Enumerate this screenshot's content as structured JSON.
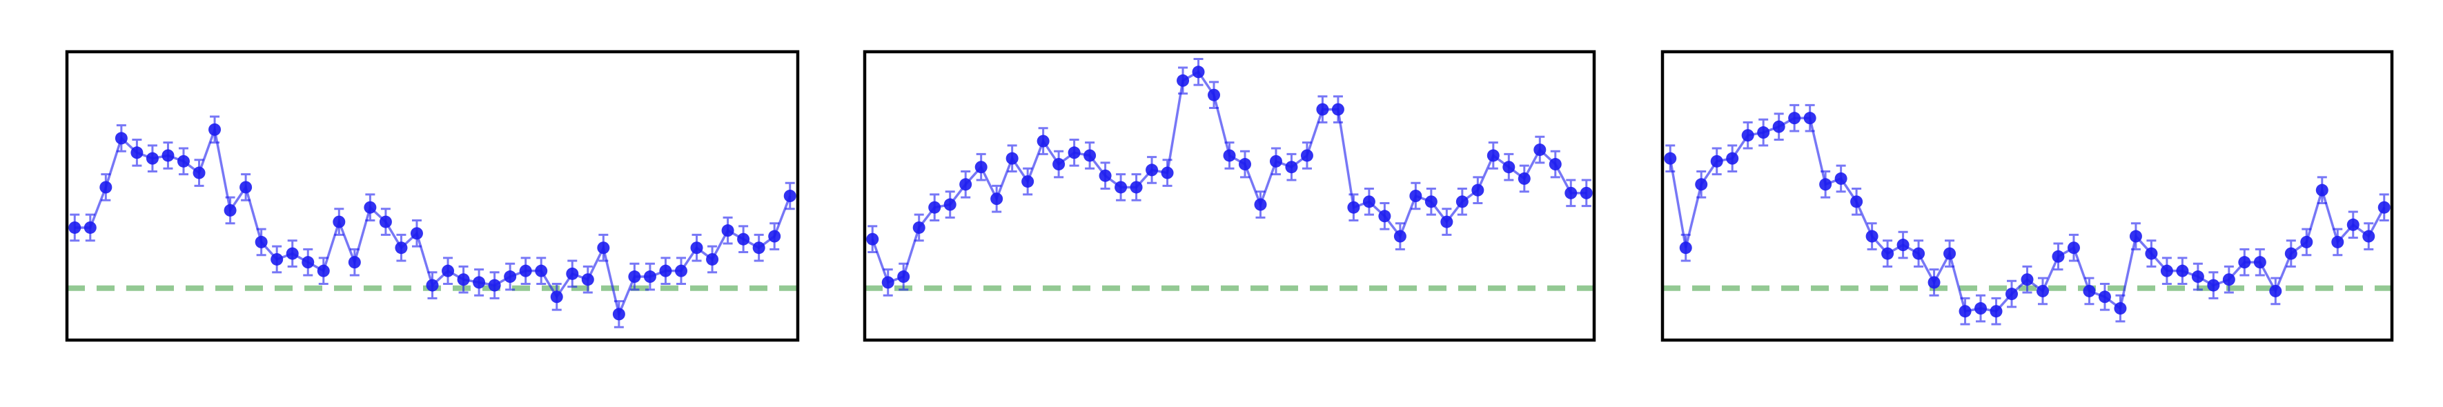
{
  "chart_data": [
    {
      "type": "line",
      "xlim": [
        -0.5,
        46.5
      ],
      "ylim": [
        0,
        10
      ],
      "series": [
        {
          "color": "#1c1cf0",
          "error": 0.45,
          "values": [
            3.9,
            3.9,
            5.3,
            7.0,
            6.5,
            6.3,
            6.4,
            6.2,
            5.8,
            7.3,
            4.5,
            5.3,
            3.4,
            2.8,
            3.0,
            2.7,
            2.4,
            4.1,
            2.7,
            4.6,
            4.1,
            3.2,
            3.7,
            1.9,
            2.4,
            2.1,
            2.0,
            1.9,
            2.2,
            2.4,
            2.4,
            1.5,
            2.3,
            2.1,
            3.2,
            0.9,
            2.2,
            2.2,
            2.4,
            2.4,
            3.2,
            2.8,
            3.8,
            3.5,
            3.2,
            3.6,
            5.0
          ]
        }
      ],
      "hline": {
        "value": 1.8,
        "color": "#93c993"
      }
    },
    {
      "type": "line",
      "xlim": [
        -0.5,
        46.5
      ],
      "ylim": [
        0,
        10
      ],
      "series": [
        {
          "color": "#1c1cf0",
          "error": 0.45,
          "values": [
            3.5,
            2.0,
            2.2,
            3.9,
            4.6,
            4.7,
            5.4,
            6.0,
            4.9,
            6.3,
            5.5,
            6.9,
            6.1,
            6.5,
            6.4,
            5.7,
            5.3,
            5.3,
            5.9,
            5.8,
            9.0,
            9.3,
            8.5,
            6.4,
            6.1,
            4.7,
            6.2,
            6.0,
            6.4,
            8.0,
            8.0,
            4.6,
            4.8,
            4.3,
            3.6,
            5.0,
            4.8,
            4.1,
            4.8,
            5.2,
            6.4,
            6.0,
            5.6,
            6.6,
            6.1,
            5.1,
            5.1
          ]
        }
      ],
      "hline": {
        "value": 1.8,
        "color": "#93c993"
      }
    },
    {
      "type": "line",
      "xlim": [
        -0.5,
        46.5
      ],
      "ylim": [
        0,
        10
      ],
      "series": [
        {
          "color": "#1c1cf0",
          "error": 0.45,
          "values": [
            6.3,
            3.2,
            5.4,
            6.2,
            6.3,
            7.1,
            7.2,
            7.4,
            7.7,
            7.7,
            5.4,
            5.6,
            4.8,
            3.6,
            3.0,
            3.3,
            3.0,
            2.0,
            3.0,
            1.0,
            1.1,
            1.0,
            1.6,
            2.1,
            1.7,
            2.9,
            3.2,
            1.7,
            1.5,
            1.1,
            3.6,
            3.0,
            2.4,
            2.4,
            2.2,
            1.9,
            2.1,
            2.7,
            2.7,
            1.7,
            3.0,
            3.4,
            5.2,
            3.4,
            4.0,
            3.6,
            4.6
          ]
        }
      ],
      "hline": {
        "value": 1.8,
        "color": "#93c993"
      }
    }
  ]
}
